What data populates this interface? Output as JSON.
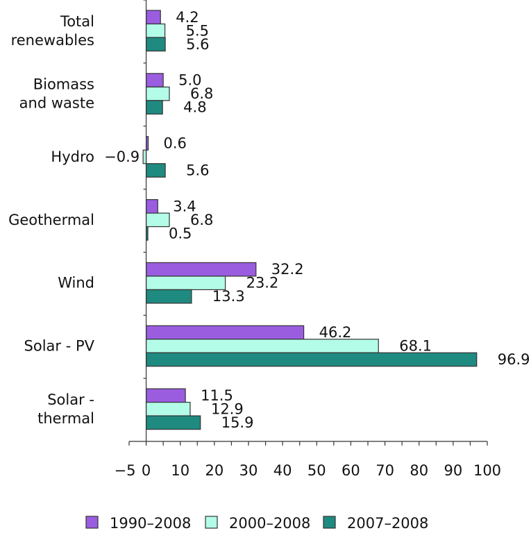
{
  "chart_data": {
    "type": "bar",
    "orientation": "horizontal",
    "title": "",
    "xlabel": "",
    "ylabel": "",
    "xlim": [
      -5,
      100
    ],
    "xticks": [
      -5,
      0,
      10,
      20,
      30,
      40,
      50,
      60,
      70,
      80,
      90,
      100
    ],
    "xtick_labels": [
      "−5",
      "0",
      "10",
      "20",
      "30",
      "40",
      "50",
      "60",
      "70",
      "80",
      "90",
      "100"
    ],
    "grid": false,
    "legend_position": "bottom",
    "categories": [
      [
        "Total",
        "renewables"
      ],
      [
        "Biomass",
        "and waste"
      ],
      [
        "Hydro"
      ],
      [
        "Geothermal"
      ],
      [
        "Wind"
      ],
      [
        "Solar - PV"
      ],
      [
        "Solar -",
        "thermal"
      ]
    ],
    "series": [
      {
        "name": "1990–2008",
        "color": "#9b5de0",
        "values": [
          4.2,
          5.0,
          0.6,
          3.4,
          32.2,
          46.2,
          11.5
        ],
        "labels": [
          "4.2",
          "5.0",
          "0.6",
          "3.4",
          "32.2",
          "46.2",
          "11.5"
        ]
      },
      {
        "name": "2000–2008",
        "color": "#b3fce8",
        "values": [
          5.5,
          6.8,
          -0.9,
          6.8,
          23.2,
          68.1,
          12.9
        ],
        "labels": [
          "5.5",
          "6.8",
          "−0.9",
          "6.8",
          "23.2",
          "68.1",
          "12.9"
        ]
      },
      {
        "name": "2007–2008",
        "color": "#1f8a80",
        "values": [
          5.6,
          4.8,
          5.6,
          0.5,
          13.3,
          96.9,
          15.9
        ],
        "labels": [
          "5.6",
          "4.8",
          "5.6",
          "0.5",
          "13.3",
          "96.9",
          "15.9"
        ]
      }
    ]
  }
}
